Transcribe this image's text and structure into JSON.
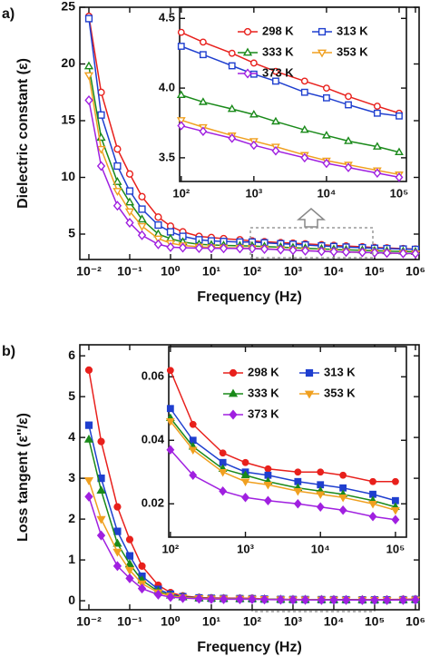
{
  "chart_data": [
    {
      "type": "line",
      "panel_label": "a)",
      "x_label": "Frequency (Hz)",
      "y_label": "Dielectric constant (ε)",
      "xscale": "log",
      "marker_fill": "open",
      "xlim": [
        0.006,
        1230000
      ],
      "ylim": [
        2.76,
        25
      ],
      "xticks": [
        {
          "value": 0.01,
          "label": "10⁻²"
        },
        {
          "value": 0.1,
          "label": "10⁻¹"
        },
        {
          "value": 1,
          "label": "10⁰"
        },
        {
          "value": 10,
          "label": "10¹"
        },
        {
          "value": 100,
          "label": "10²"
        },
        {
          "value": 1000,
          "label": "10³"
        },
        {
          "value": 10000,
          "label": "10⁴"
        },
        {
          "value": 100000,
          "label": "10⁵"
        },
        {
          "value": 1000000,
          "label": "10⁶"
        }
      ],
      "yticks": [
        5,
        10,
        15,
        20,
        25
      ],
      "x": [
        0.01,
        0.02,
        0.05,
        0.1,
        0.2,
        0.5,
        1,
        2,
        5,
        10,
        20,
        50,
        100,
        200,
        500,
        1000,
        2000,
        5000,
        10000,
        20000,
        50000,
        100000,
        200000,
        500000,
        1000000
      ],
      "series": [
        {
          "color": "#e8201c",
          "marker": "circle",
          "values": [
            24.2,
            17.5,
            12.5,
            10.3,
            8.3,
            6.5,
            5.7,
            5.2,
            4.8,
            4.7,
            4.6,
            4.5,
            4.4,
            4.33,
            4.25,
            4.2,
            4.14,
            4.06,
            4.0,
            3.95,
            3.88,
            3.82,
            3.78,
            3.72,
            3.68
          ]
        },
        {
          "color": "#1f3fcf",
          "marker": "square",
          "values": [
            24.0,
            15.5,
            11.0,
            8.8,
            7.2,
            5.8,
            5.2,
            4.8,
            4.5,
            4.4,
            4.35,
            4.3,
            4.3,
            4.23,
            4.15,
            4.1,
            4.04,
            3.96,
            3.9,
            3.85,
            3.8,
            3.75,
            3.72,
            3.68,
            3.65
          ]
        },
        {
          "color": "#1a8a1a",
          "marker": "triangle",
          "values": [
            19.8,
            13.5,
            9.6,
            7.8,
            6.3,
            5.0,
            4.6,
            4.3,
            4.1,
            4.05,
            4.0,
            3.97,
            3.95,
            3.9,
            3.85,
            3.8,
            3.75,
            3.69,
            3.65,
            3.61,
            3.57,
            3.53,
            3.5,
            3.47,
            3.44
          ]
        },
        {
          "color": "#f0a020",
          "marker": "triangle-down",
          "values": [
            19.0,
            12.5,
            8.8,
            7.0,
            5.7,
            4.6,
            4.2,
            4.0,
            3.88,
            3.82,
            3.8,
            3.78,
            3.76,
            3.71,
            3.65,
            3.6,
            3.55,
            3.49,
            3.45,
            3.42,
            3.39,
            3.36,
            3.33,
            3.3,
            3.28
          ]
        },
        {
          "color": "#a020e0",
          "marker": "diamond",
          "values": [
            16.8,
            11.0,
            7.5,
            6.0,
            4.9,
            4.1,
            3.85,
            3.8,
            3.76,
            3.75,
            3.74,
            3.73,
            3.72,
            3.68,
            3.63,
            3.58,
            3.53,
            3.48,
            3.45,
            3.42,
            3.39,
            3.36,
            3.33,
            3.3,
            3.28
          ]
        }
      ]
    },
    {
      "type": "line",
      "xscale": "log",
      "marker_fill": "open",
      "legend": "upper right",
      "xlim": [
        95,
        126000
      ],
      "ylim": [
        3.33,
        4.58
      ],
      "xticks": [
        {
          "value": 100,
          "label": "10²"
        },
        {
          "value": 1000,
          "label": "10³"
        },
        {
          "value": 10000,
          "label": "10⁴"
        },
        {
          "value": 100000,
          "label": "10⁵"
        }
      ],
      "yticks": [
        3.5,
        4.0,
        4.5
      ],
      "x": [
        100,
        200,
        500,
        1000,
        2000,
        5000,
        10000,
        20000,
        50000,
        100000
      ],
      "series": [
        {
          "name": "298 K",
          "color": "#e8201c",
          "marker": "circle",
          "values": [
            4.4,
            4.33,
            4.25,
            4.18,
            4.12,
            4.05,
            4.0,
            3.94,
            3.87,
            3.82
          ]
        },
        {
          "name": "313 K",
          "color": "#1f3fcf",
          "marker": "square",
          "values": [
            4.3,
            4.24,
            4.16,
            4.1,
            4.05,
            3.97,
            3.93,
            3.88,
            3.82,
            3.8
          ]
        },
        {
          "name": "333 K",
          "color": "#1a8a1a",
          "marker": "triangle",
          "values": [
            3.95,
            3.9,
            3.85,
            3.81,
            3.76,
            3.7,
            3.66,
            3.62,
            3.58,
            3.54
          ]
        },
        {
          "name": "353 K",
          "color": "#f0a020",
          "marker": "triangle-down",
          "values": [
            3.77,
            3.72,
            3.66,
            3.62,
            3.58,
            3.52,
            3.48,
            3.45,
            3.41,
            3.38
          ]
        },
        {
          "name": "373 K",
          "color": "#a020e0",
          "marker": "diamond",
          "values": [
            3.73,
            3.69,
            3.64,
            3.59,
            3.55,
            3.5,
            3.46,
            3.43,
            3.39,
            3.36
          ]
        }
      ]
    },
    {
      "type": "line",
      "panel_label": "b)",
      "x_label": "Frequency (Hz)",
      "y_label": "Loss tangent (ε''/ε)",
      "xscale": "log",
      "marker_fill": "filled",
      "xlim": [
        0.006,
        1230000
      ],
      "ylim": [
        -0.22,
        6.27
      ],
      "xticks": [
        {
          "value": 0.01,
          "label": "10⁻²"
        },
        {
          "value": 0.1,
          "label": "10⁻¹"
        },
        {
          "value": 1,
          "label": "10⁰"
        },
        {
          "value": 10,
          "label": "10¹"
        },
        {
          "value": 100,
          "label": "10²"
        },
        {
          "value": 1000,
          "label": "10³"
        },
        {
          "value": 10000,
          "label": "10⁴"
        },
        {
          "value": 100000,
          "label": "10⁵"
        },
        {
          "value": 1000000,
          "label": "10⁶"
        }
      ],
      "yticks": [
        0,
        1,
        2,
        3,
        4,
        5,
        6
      ],
      "x": [
        0.01,
        0.02,
        0.05,
        0.1,
        0.2,
        0.5,
        1,
        2,
        5,
        10,
        20,
        50,
        100,
        200,
        500,
        1000,
        2000,
        5000,
        10000,
        20000,
        50000,
        100000,
        200000,
        500000,
        1000000
      ],
      "series": [
        {
          "color": "#e8201c",
          "marker": "circle",
          "values": [
            5.65,
            3.9,
            2.3,
            1.5,
            0.85,
            0.38,
            0.2,
            0.12,
            0.08,
            0.07,
            0.065,
            0.062,
            0.06,
            0.045,
            0.036,
            0.033,
            0.031,
            0.03,
            0.03,
            0.029,
            0.027,
            0.027,
            0.03,
            0.035,
            0.04
          ]
        },
        {
          "color": "#1f3fcf",
          "marker": "square",
          "values": [
            4.3,
            3.0,
            1.7,
            1.1,
            0.6,
            0.28,
            0.16,
            0.1,
            0.07,
            0.06,
            0.055,
            0.052,
            0.05,
            0.04,
            0.033,
            0.03,
            0.029,
            0.027,
            0.026,
            0.025,
            0.023,
            0.021,
            0.022,
            0.025,
            0.03
          ]
        },
        {
          "color": "#1a8a1a",
          "marker": "triangle",
          "values": [
            3.95,
            2.7,
            1.4,
            0.9,
            0.5,
            0.23,
            0.13,
            0.09,
            0.065,
            0.055,
            0.05,
            0.048,
            0.047,
            0.038,
            0.031,
            0.029,
            0.027,
            0.025,
            0.024,
            0.023,
            0.021,
            0.019,
            0.02,
            0.023,
            0.028
          ]
        },
        {
          "color": "#f0a020",
          "marker": "triangle-down",
          "values": [
            2.95,
            2.0,
            1.2,
            0.75,
            0.42,
            0.2,
            0.12,
            0.08,
            0.06,
            0.052,
            0.048,
            0.046,
            0.046,
            0.037,
            0.03,
            0.027,
            0.026,
            0.024,
            0.023,
            0.022,
            0.02,
            0.018,
            0.019,
            0.022,
            0.027
          ]
        },
        {
          "color": "#a020e0",
          "marker": "diamond",
          "values": [
            2.55,
            1.6,
            0.85,
            0.55,
            0.3,
            0.15,
            0.09,
            0.065,
            0.05,
            0.042,
            0.039,
            0.037,
            0.037,
            0.029,
            0.024,
            0.022,
            0.021,
            0.02,
            0.019,
            0.018,
            0.016,
            0.015,
            0.016,
            0.019,
            0.023
          ]
        }
      ]
    },
    {
      "type": "line",
      "xscale": "log",
      "marker_fill": "filled",
      "legend": "upper right",
      "xlim": [
        95,
        140000
      ],
      "ylim": [
        0.0095,
        0.0695
      ],
      "xticks": [
        {
          "value": 100,
          "label": "10²"
        },
        {
          "value": 1000,
          "label": "10³"
        },
        {
          "value": 10000,
          "label": "10⁴"
        },
        {
          "value": 100000,
          "label": "10⁵"
        }
      ],
      "yticks": [
        0.02,
        0.04,
        0.06
      ],
      "x": [
        100,
        200,
        500,
        1000,
        2000,
        5000,
        10000,
        20000,
        50000,
        100000
      ],
      "series": [
        {
          "name": "298 K",
          "color": "#e8201c",
          "marker": "circle",
          "values": [
            0.062,
            0.045,
            0.036,
            0.033,
            0.031,
            0.03,
            0.03,
            0.029,
            0.027,
            0.027
          ]
        },
        {
          "name": "313 K",
          "color": "#1f3fcf",
          "marker": "square",
          "values": [
            0.05,
            0.04,
            0.033,
            0.03,
            0.029,
            0.027,
            0.026,
            0.025,
            0.023,
            0.021
          ]
        },
        {
          "name": "333 K",
          "color": "#1a8a1a",
          "marker": "triangle",
          "values": [
            0.047,
            0.038,
            0.031,
            0.029,
            0.027,
            0.025,
            0.024,
            0.023,
            0.021,
            0.019
          ]
        },
        {
          "name": "353 K",
          "color": "#f0a020",
          "marker": "triangle-down",
          "values": [
            0.046,
            0.037,
            0.03,
            0.027,
            0.026,
            0.024,
            0.023,
            0.022,
            0.02,
            0.018
          ]
        },
        {
          "name": "373 K",
          "color": "#a020e0",
          "marker": "diamond",
          "values": [
            0.037,
            0.029,
            0.024,
            0.022,
            0.021,
            0.02,
            0.019,
            0.018,
            0.016,
            0.015
          ]
        }
      ]
    }
  ]
}
